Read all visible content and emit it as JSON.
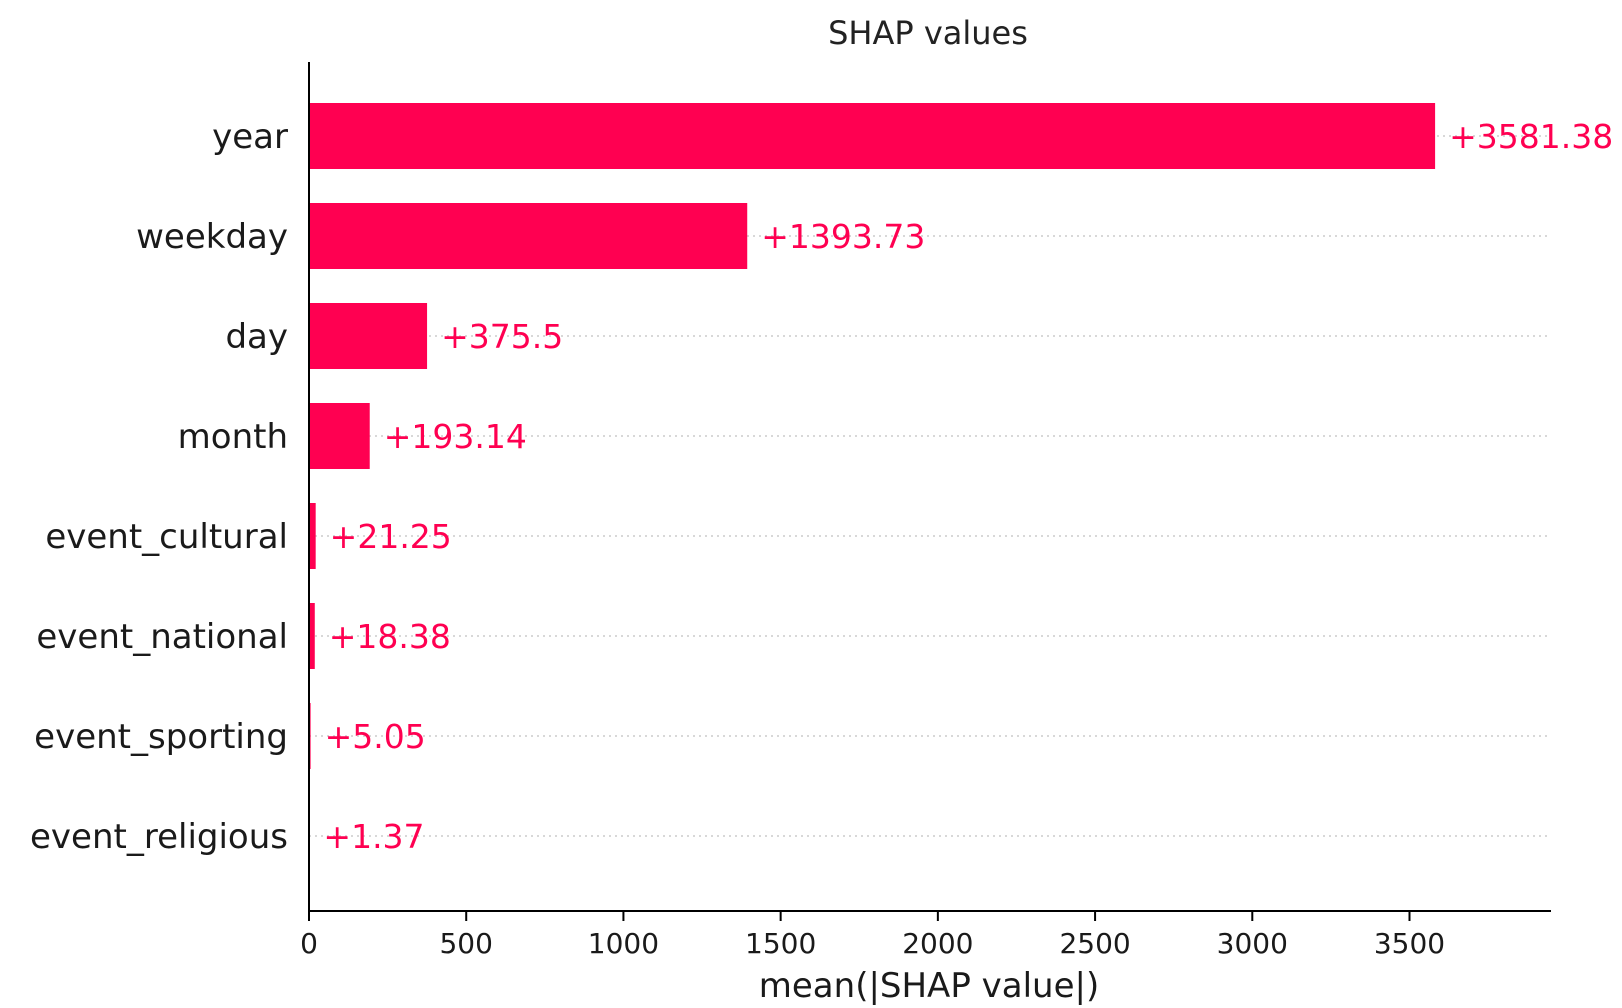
{
  "chart_data": {
    "type": "bar",
    "orientation": "horizontal",
    "title": "SHAP values",
    "xlabel": "mean(|SHAP value|)",
    "ylabel": "",
    "categories": [
      "year",
      "weekday",
      "day",
      "month",
      "event_cultural",
      "event_national",
      "event_sporting",
      "event_religious"
    ],
    "values": [
      3581.38,
      1393.73,
      375.5,
      193.14,
      21.25,
      18.38,
      5.05,
      1.37
    ],
    "value_labels": [
      "+3581.38",
      "+1393.73",
      "+375.5",
      "+193.14",
      "+21.25",
      "+18.38",
      "+5.05",
      "+1.37"
    ],
    "xlim": [
      0,
      3950
    ],
    "xticks": [
      0,
      500,
      1000,
      1500,
      2000,
      2500,
      3000,
      3500
    ],
    "xtick_labels": [
      "0",
      "500",
      "1000",
      "1500",
      "2000",
      "2500",
      "3000",
      "3500"
    ],
    "bar_color": "#ff0051",
    "grid": "dotted horizontal guides per row"
  }
}
